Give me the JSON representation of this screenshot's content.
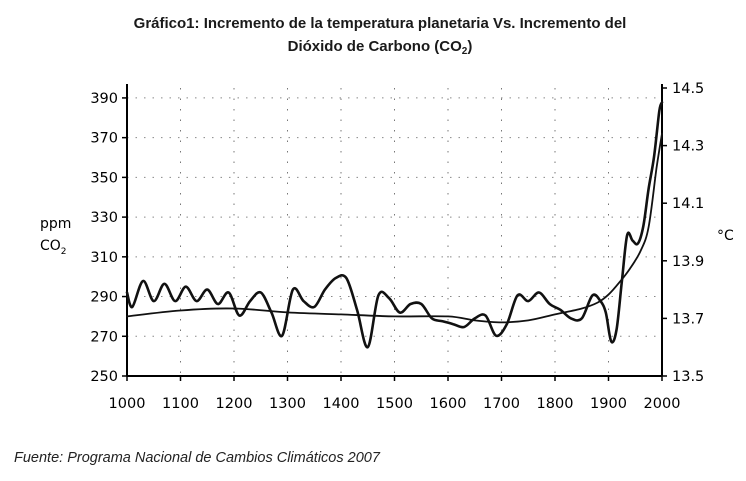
{
  "header": {
    "title_line1": "Gráfico1: Incremento de la temperatura planetaria Vs. Incremento del",
    "title_line2_main": "Dióxido de Carbono (CO",
    "title_line2_sub": "2",
    "title_line2_end": ")"
  },
  "footer": {
    "source": "Fuente: Programa Nacional de Cambios Climáticos 2007"
  },
  "chart_data": {
    "type": "line",
    "title": "Gráfico1: Incremento de la temperatura planetaria Vs. Incremento del Dióxido de Carbono (CO2)",
    "xlabel": "",
    "ylabel_left_line1": "ppm",
    "ylabel_left_line2": "CO",
    "ylabel_left_sub": "2",
    "ylabel_right": "°C",
    "xlim": [
      1000,
      2000
    ],
    "ylim_left": [
      250,
      395
    ],
    "ylim_right": [
      13.5,
      14.5
    ],
    "x_ticks": [
      "1000",
      "1100",
      "1200",
      "1300",
      "1400",
      "1500",
      "1600",
      "1700",
      "1800",
      "1900",
      "2000"
    ],
    "y_left_ticks": [
      "250",
      "270",
      "290",
      "310",
      "330",
      "350",
      "370",
      "390"
    ],
    "y_right_ticks": [
      "13.5",
      "13.7",
      "13.9",
      "14.1",
      "14.3",
      "14.5"
    ],
    "grid": true,
    "series": [
      {
        "name": "CO2 (ppm)",
        "axis": "left",
        "x": [
          1000,
          1100,
          1200,
          1300,
          1400,
          1500,
          1600,
          1650,
          1700,
          1750,
          1800,
          1850,
          1880,
          1900,
          1920,
          1940,
          1960,
          1975,
          1990,
          2000
        ],
        "values": [
          280,
          283,
          284,
          282,
          281,
          280,
          280,
          278,
          277,
          278,
          281,
          284,
          287,
          291,
          297,
          304,
          313,
          325,
          355,
          372
        ]
      },
      {
        "name": "Temperatura (°C)",
        "axis": "right",
        "x": [
          1000,
          1010,
          1030,
          1050,
          1070,
          1090,
          1110,
          1130,
          1150,
          1170,
          1190,
          1210,
          1230,
          1250,
          1270,
          1290,
          1310,
          1330,
          1350,
          1370,
          1390,
          1410,
          1430,
          1450,
          1470,
          1490,
          1510,
          1530,
          1550,
          1570,
          1590,
          1610,
          1630,
          1650,
          1670,
          1690,
          1710,
          1730,
          1750,
          1770,
          1790,
          1810,
          1830,
          1850,
          1870,
          1885,
          1895,
          1905,
          1915,
          1925,
          1935,
          1945,
          1955,
          1965,
          1975,
          1985,
          1995,
          2000
        ],
        "values": [
          13.79,
          13.74,
          13.83,
          13.76,
          13.82,
          13.76,
          13.81,
          13.76,
          13.8,
          13.75,
          13.79,
          13.71,
          13.76,
          13.79,
          13.72,
          13.64,
          13.8,
          13.76,
          13.74,
          13.8,
          13.84,
          13.84,
          13.73,
          13.6,
          13.78,
          13.77,
          13.72,
          13.75,
          13.75,
          13.7,
          13.69,
          13.68,
          13.67,
          13.7,
          13.71,
          13.64,
          13.68,
          13.78,
          13.76,
          13.79,
          13.75,
          13.73,
          13.7,
          13.7,
          13.78,
          13.76,
          13.72,
          13.62,
          13.66,
          13.83,
          13.99,
          13.97,
          13.96,
          14.02,
          14.15,
          14.26,
          14.42,
          14.45
        ]
      }
    ]
  }
}
